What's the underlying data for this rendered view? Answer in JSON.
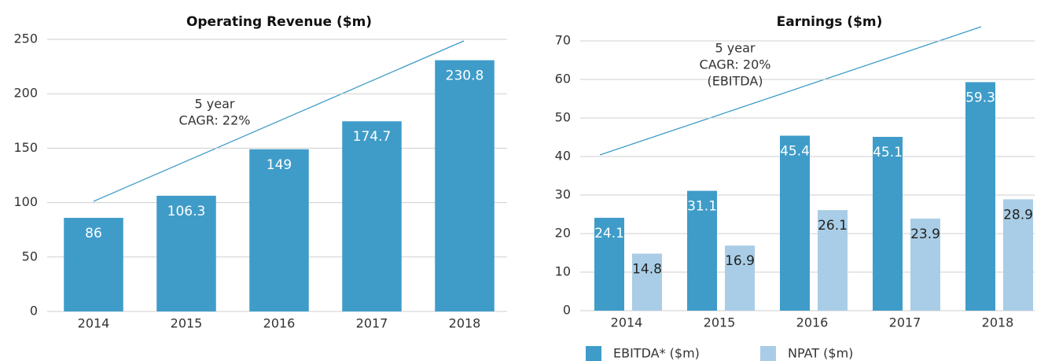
{
  "chart_data": [
    {
      "type": "bar",
      "title": "Operating Revenue ($m)",
      "categories": [
        "2014",
        "2015",
        "2016",
        "2017",
        "2018"
      ],
      "values": [
        86,
        106.3,
        149,
        174.7,
        230.8
      ],
      "color": "#3f9cc9",
      "ylim": [
        0,
        250
      ],
      "yticks": [
        0,
        50,
        100,
        150,
        200,
        250
      ],
      "grid": true,
      "annotation": [
        "5 year",
        "CAGR: 22%"
      ]
    },
    {
      "type": "grouped_bar",
      "title": "Earnings ($m)",
      "categories": [
        "2014",
        "2015",
        "2016",
        "2017",
        "2018"
      ],
      "series": [
        {
          "name": "EBITDA* ($m)",
          "color": "#3f9cc9",
          "values": [
            24.1,
            31.1,
            45.4,
            45.1,
            59.3
          ]
        },
        {
          "name": "NPAT ($m)",
          "color": "#a9cde6",
          "values": [
            14.8,
            16.9,
            26.1,
            23.9,
            28.9
          ]
        }
      ],
      "ylim": [
        0,
        70
      ],
      "yticks": [
        0,
        10,
        20,
        30,
        40,
        50,
        60,
        70
      ],
      "grid": true,
      "legend": "bottom",
      "annotation": [
        "5 year",
        "CAGR: 20%",
        "(EBITDA)"
      ]
    }
  ]
}
